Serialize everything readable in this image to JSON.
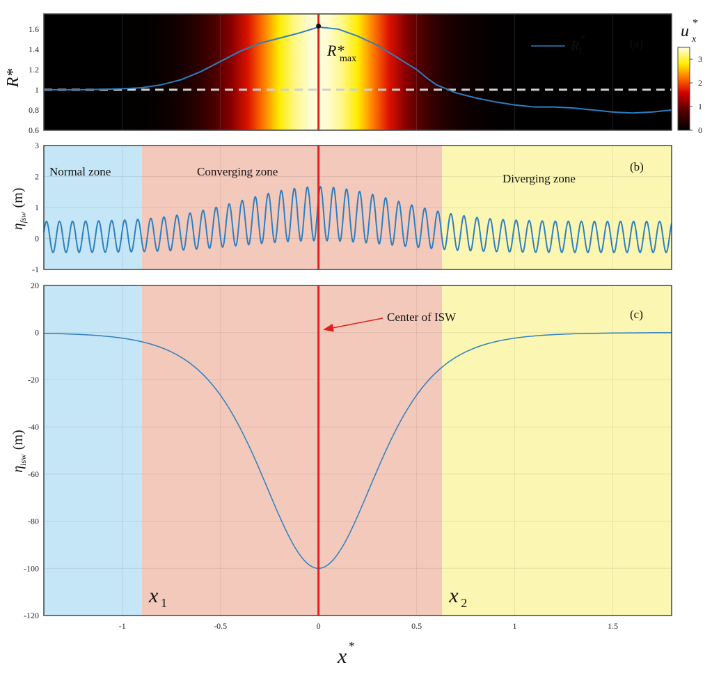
{
  "chart_data": [
    {
      "id": "a",
      "type": "line",
      "panel_label": "(a)",
      "background": "heatmap of u_x^* along x^* (black-red-yellow colormap)",
      "ylabel": "R*",
      "ylim": [
        0.6,
        1.75
      ],
      "yticks": [
        "0.6",
        "0.8",
        "1",
        "1.2",
        "1.4",
        "1.6"
      ],
      "ytick_values": [
        0.6,
        0.8,
        1.0,
        1.2,
        1.4,
        1.6
      ],
      "xlim": [
        -1.4,
        1.8
      ],
      "series": [
        {
          "name": "R_l*",
          "color": "#2c7fc1",
          "x": [
            -1.4,
            -1.2,
            -1.0,
            -0.9,
            -0.8,
            -0.7,
            -0.6,
            -0.5,
            -0.4,
            -0.3,
            -0.2,
            -0.1,
            0.0,
            0.1,
            0.2,
            0.3,
            0.4,
            0.5,
            0.55,
            0.6,
            0.7,
            0.8,
            0.9,
            1.0,
            1.1,
            1.2,
            1.3,
            1.4,
            1.5,
            1.6,
            1.7,
            1.8
          ],
          "y": [
            1.0,
            1.0,
            1.01,
            1.02,
            1.05,
            1.1,
            1.18,
            1.28,
            1.38,
            1.46,
            1.51,
            1.56,
            1.62,
            1.6,
            1.53,
            1.44,
            1.32,
            1.2,
            1.12,
            1.05,
            0.97,
            0.92,
            0.88,
            0.85,
            0.83,
            0.83,
            0.82,
            0.8,
            0.78,
            0.77,
            0.78,
            0.8
          ]
        }
      ],
      "reference_line": {
        "y": 1.0,
        "style": "dashed",
        "color": "#cccccc"
      },
      "max_marker": {
        "x": 0.0,
        "y": 1.63,
        "label": "R*",
        "label_sub": "max"
      },
      "legend": {
        "label_main": "R",
        "label_sub": "l",
        "label_sup": "*",
        "placement": "top-right"
      },
      "colorbar": {
        "title": "u",
        "title_sub": "x",
        "title_sup": "*",
        "ticks": [
          "0",
          "1",
          "2",
          "3"
        ],
        "tick_values": [
          0,
          1,
          2,
          3
        ],
        "range": [
          0,
          3.5
        ]
      }
    },
    {
      "id": "b",
      "type": "line",
      "panel_label": "(b)",
      "ylabel_main": "η",
      "ylabel_sub": "fsw",
      "ylabel_unit": "(m)",
      "ylim": [
        -1,
        3
      ],
      "yticks": [
        "-1",
        "0",
        "1",
        "2",
        "3"
      ],
      "ytick_values": [
        -1,
        0,
        1,
        2,
        3
      ],
      "xlim": [
        -1.4,
        1.8
      ],
      "wave": {
        "wavelength": 0.0665,
        "amplitude_outer": 0.5,
        "amplitude_max": 0.87,
        "mean_zone_boundaries": [
          -0.9,
          0.63
        ],
        "mean_peak": 0.8,
        "mean_outer": 0.05
      },
      "zones": [
        {
          "name": "Normal zone",
          "from": -1.4,
          "to": -0.9,
          "color": "#c5e6f6"
        },
        {
          "name": "Converging zone",
          "from": -0.9,
          "to": 0.63,
          "color": "#f3c9bb"
        },
        {
          "name": "Diverging zone",
          "from": 0.63,
          "to": 1.8,
          "color": "#fbf7b2"
        }
      ]
    },
    {
      "id": "c",
      "type": "line",
      "panel_label": "(c)",
      "ylabel_main": "η",
      "ylabel_sub": "isw",
      "ylabel_unit": "(m)",
      "ylim": [
        -120,
        20
      ],
      "yticks": [
        "-120",
        "-100",
        "-80",
        "-60",
        "-40",
        "-20",
        "0",
        "20"
      ],
      "ytick_values": [
        -120,
        -100,
        -80,
        -60,
        -40,
        -20,
        0,
        20
      ],
      "xlim": [
        -1.4,
        1.8
      ],
      "xticks": [
        "-1",
        "-0.5",
        "0",
        "0.5",
        "1",
        "1.5"
      ],
      "xtick_values": [
        -1,
        -0.5,
        0,
        0.5,
        1,
        1.5
      ],
      "xlabel": "x*",
      "isw": {
        "amplitude": -100,
        "x_center": 0,
        "width": 0.39
      },
      "annotation": {
        "text": "Center of ISW",
        "arrow_to_x": 0.0,
        "arrow_to_y": 1
      },
      "markers": [
        {
          "label": "x",
          "sub": "1",
          "x": -0.9
        },
        {
          "label": "x",
          "sub": "2",
          "x": 0.63
        }
      ]
    }
  ],
  "center_line_color": "#e02020",
  "colors": {
    "series": "#2c7fc1",
    "center": "#e02020",
    "normal": "#c5e6f6",
    "converging": "#f3c9bb",
    "diverging": "#fbf7b2"
  }
}
